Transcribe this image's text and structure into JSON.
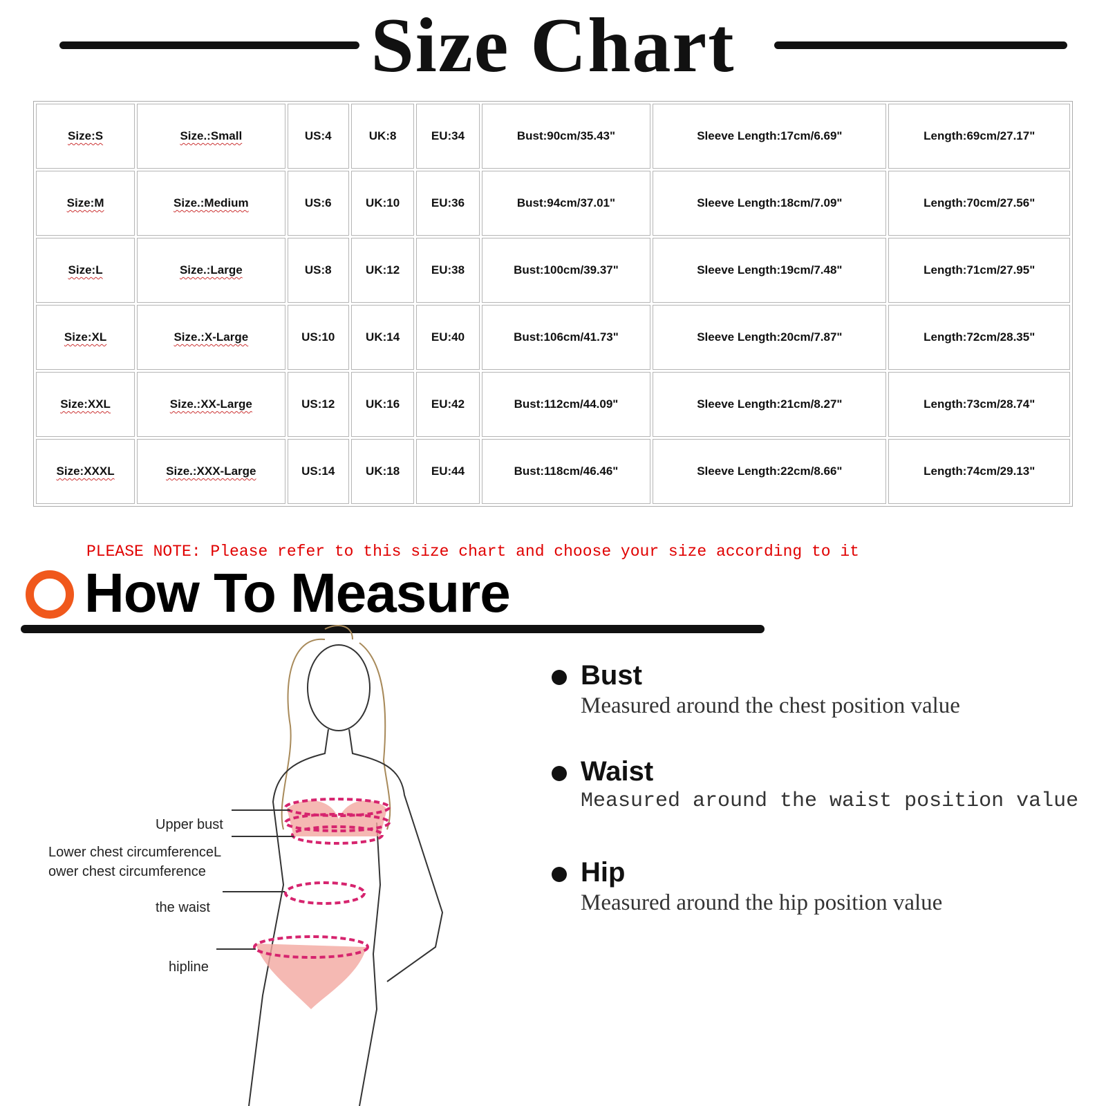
{
  "title": "Size Chart",
  "table": {
    "rows": [
      [
        "Size:S",
        "Size.:Small",
        "US:4",
        "UK:8",
        "EU:34",
        "Bust:90cm/35.43\"",
        "Sleeve Length:17cm/6.69\"",
        "Length:69cm/27.17\""
      ],
      [
        "Size:M",
        "Size.:Medium",
        "US:6",
        "UK:10",
        "EU:36",
        "Bust:94cm/37.01\"",
        "Sleeve Length:18cm/7.09\"",
        "Length:70cm/27.56\""
      ],
      [
        "Size:L",
        "Size.:Large",
        "US:8",
        "UK:12",
        "EU:38",
        "Bust:100cm/39.37\"",
        "Sleeve Length:19cm/7.48\"",
        "Length:71cm/27.95\""
      ],
      [
        "Size:XL",
        "Size.:X-Large",
        "US:10",
        "UK:14",
        "EU:40",
        "Bust:106cm/41.73\"",
        "Sleeve Length:20cm/7.87\"",
        "Length:72cm/28.35\""
      ],
      [
        "Size:XXL",
        "Size.:XX-Large",
        "US:12",
        "UK:16",
        "EU:42",
        "Bust:112cm/44.09\"",
        "Sleeve Length:21cm/8.27\"",
        "Length:73cm/28.74\""
      ],
      [
        "Size:XXXL",
        "Size.:XXX-Large",
        "US:14",
        "UK:18",
        "EU:44",
        "Bust:118cm/46.46\"",
        "Sleeve Length:22cm/8.66\"",
        "Length:74cm/29.13\""
      ]
    ]
  },
  "note": "PLEASE NOTE: Please refer to this size chart and choose your size according to it",
  "how_to": {
    "heading": "How To Measure",
    "accent_color": "#f0581c",
    "items": [
      {
        "name": "Bust",
        "desc": "Measured around the chest position value"
      },
      {
        "name": "Waist",
        "desc": "Measured around the waist position value"
      },
      {
        "name": "Hip",
        "desc": "Measured around the  hip position value"
      }
    ],
    "figure_labels": {
      "upper_bust": "Upper bust",
      "lower_chest_1": "Lower chest circumferenceL",
      "lower_chest_2": "ower chest circumference",
      "waist": "the waist",
      "hipline": "hipline"
    }
  }
}
